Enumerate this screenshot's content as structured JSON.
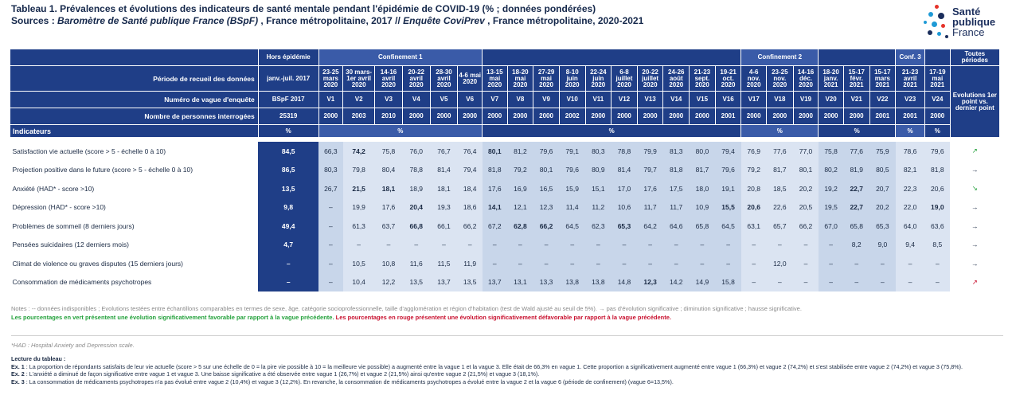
{
  "title": {
    "line1": "Tableau 1. Prévalences et évolutions des indicateurs de santé mentale pendant l'épidémie de COVID-19 (% ; données pondérées)",
    "sources_label": "Sources : ",
    "sources_it1": "Baromètre de Santé publique France (BSpF)",
    "sources_mid": " , France métropolitaine, 2017 // ",
    "sources_it2": "Enquête CoviPrev",
    "sources_end": " , France métropolitaine, 2020-2021"
  },
  "logo": {
    "line1": "Santé",
    "line2": "publique",
    "line3": "France"
  },
  "table": {
    "hors_epidemie": "Hors épidémie",
    "groups": [
      "Confinement 1",
      "Confinement 2",
      "Conf. 3"
    ],
    "toutes_periodes": "Toutes périodes",
    "row_periode_label": "Période de recueil des données",
    "row_vague_label": "Numéro de vague d'enquête",
    "row_nb_label": "Nombre de personnes interrogées",
    "indicateurs_label": "Indicateurs",
    "evolutions_label": "Evolutions 1er point vs. dernier point",
    "periods": [
      "janv.-juil. 2017",
      "23-25 mars 2020",
      "30 mars-1er avril 2020",
      "14-16 avril 2020",
      "20-22 avril 2020",
      "28-30 avril 2020",
      "4-6 mai 2020",
      "13-15 mai 2020",
      "18-20 mai 2020",
      "27-29 mai 2020",
      "8-10 juin 2020",
      "22-24 juin 2020",
      "6-8 juillet 2020",
      "20-22 juillet 2020",
      "24-26 août 2020",
      "21-23 sept. 2020",
      "19-21 oct. 2020",
      "4-6 nov. 2020",
      "23-25 nov. 2020",
      "14-16 déc. 2020",
      "18-20 janv. 2021",
      "15-17 févr. 2021",
      "15-17 mars 2021",
      "21-23 avril 2021",
      "17-19 mai 2021"
    ],
    "vagues": [
      "BSpF 2017",
      "V1",
      "V2",
      "V3",
      "V4",
      "V5",
      "V6",
      "V7",
      "V8",
      "V9",
      "V10",
      "V11",
      "V12",
      "V13",
      "V14",
      "V15",
      "V16",
      "V17",
      "V18",
      "V19",
      "V20",
      "V21",
      "V22",
      "V23",
      "V24"
    ],
    "nb": [
      "25319",
      "2000",
      "2003",
      "2010",
      "2000",
      "2000",
      "2000",
      "2000",
      "2000",
      "2000",
      "2002",
      "2000",
      "2000",
      "2000",
      "2000",
      "2000",
      "2001",
      "2000",
      "2000",
      "2000",
      "2000",
      "2000",
      "2001",
      "2001",
      "2000"
    ],
    "pct": "%",
    "rows": [
      {
        "label": "Satisfaction vie actuelle (score > 5 - échelle 0 à 10)",
        "hors": "84,5",
        "v": [
          "66,3",
          "74,2",
          "75,8",
          "76,0",
          "76,7",
          "76,4",
          "80,1",
          "81,2",
          "79,6",
          "79,1",
          "80,3",
          "78,8",
          "79,9",
          "81,3",
          "80,0",
          "79,4",
          "76,9",
          "77,6",
          "77,0",
          "75,8",
          "77,6",
          "75,9",
          "78,6",
          "79,6"
        ],
        "c": [
          "",
          "g",
          "",
          "",
          "",
          "",
          "g",
          "",
          "",
          "",
          "",
          "",
          "",
          "",
          "",
          "",
          "",
          "",
          "",
          "",
          "",
          "",
          "",
          ""
        ],
        "evo": "↗",
        "evo_kind": "dn"
      },
      {
        "label": "Projection positive dans le future (score > 5 - échelle 0 à 10)",
        "hors": "86,5",
        "v": [
          "80,3",
          "79,8",
          "80,4",
          "78,8",
          "81,4",
          "79,4",
          "81,8",
          "79,2",
          "80,1",
          "79,6",
          "80,9",
          "81,4",
          "79,7",
          "81,8",
          "81,7",
          "79,6",
          "79,2",
          "81,7",
          "80,1",
          "80,2",
          "81,9",
          "80,5",
          "82,1",
          "81,8"
        ],
        "c": [
          "",
          "",
          "",
          "",
          "",
          "",
          "",
          "",
          "",
          "",
          "",
          "",
          "",
          "",
          "",
          "",
          "",
          "",
          "",
          "",
          "",
          "",
          "",
          ""
        ],
        "evo": "→",
        "evo_kind": "eq"
      },
      {
        "label": "Anxiété (HAD* - score >10)",
        "hors": "13,5",
        "v": [
          "26,7",
          "21,5",
          "18,1",
          "18,9",
          "18,1",
          "18,4",
          "17,6",
          "16,9",
          "16,5",
          "15,9",
          "15,1",
          "17,0",
          "17,6",
          "17,5",
          "18,0",
          "19,1",
          "20,8",
          "18,5",
          "20,2",
          "19,2",
          "22,7",
          "20,7",
          "22,3",
          "20,6"
        ],
        "c": [
          "",
          "g",
          "g",
          "",
          "",
          "",
          "",
          "",
          "",
          "",
          "",
          "",
          "",
          "",
          "",
          "",
          "",
          "",
          "",
          "",
          "r",
          "",
          "",
          ""
        ],
        "evo": "↘",
        "evo_kind": "dn"
      },
      {
        "label": "Dépression (HAD* - score >10)",
        "hors": "9,8",
        "v": [
          "–",
          "19,9",
          "17,6",
          "20,4",
          "19,3",
          "18,6",
          "14,1",
          "12,1",
          "12,3",
          "11,4",
          "11,2",
          "10,6",
          "11,7",
          "11,7",
          "10,9",
          "15,5",
          "20,6",
          "22,6",
          "20,5",
          "19,5",
          "22,7",
          "20,2",
          "22,0",
          "19,0"
        ],
        "c": [
          "",
          "",
          "",
          "r",
          "",
          "",
          "g",
          "",
          "",
          "",
          "",
          "",
          "",
          "",
          "",
          "r",
          "r",
          "",
          "",
          "",
          "r",
          "",
          "",
          "g"
        ],
        "evo": "→",
        "evo_kind": "eq"
      },
      {
        "label": "Problèmes de sommeil (8 derniers jours)",
        "hors": "49,4",
        "v": [
          "–",
          "61,3",
          "63,7",
          "66,8",
          "66,1",
          "66,2",
          "67,2",
          "62,8",
          "66,2",
          "64,5",
          "62,3",
          "65,3",
          "64,2",
          "64,6",
          "65,8",
          "64,5",
          "63,1",
          "65,7",
          "66,2",
          "67,0",
          "65,8",
          "65,3",
          "64,0",
          "63,6"
        ],
        "c": [
          "",
          "",
          "",
          "r",
          "",
          "",
          "",
          "g",
          "r",
          "",
          "",
          "r",
          "",
          "",
          "",
          "",
          "",
          "",
          "",
          "",
          "",
          "",
          "",
          ""
        ],
        "evo": "→",
        "evo_kind": "eq"
      },
      {
        "label": "Pensées suicidaires (12 derniers mois)",
        "hors": "4,7",
        "v": [
          "–",
          "–",
          "–",
          "–",
          "–",
          "–",
          "–",
          "–",
          "–",
          "–",
          "–",
          "–",
          "–",
          "–",
          "–",
          "–",
          "–",
          "–",
          "–",
          "–",
          "8,2",
          "9,0",
          "9,4",
          "8,5"
        ],
        "c": [
          "",
          "",
          "",
          "",
          "",
          "",
          "",
          "",
          "",
          "",
          "",
          "",
          "",
          "",
          "",
          "",
          "",
          "",
          "",
          "",
          "",
          "",
          "",
          ""
        ],
        "evo": "→",
        "evo_kind": "eq"
      },
      {
        "label": "Climat de violence ou graves disputes (15 derniers jours)",
        "hors": "–",
        "v": [
          "–",
          "10,5",
          "10,8",
          "11,6",
          "11,5",
          "11,9",
          "–",
          "–",
          "–",
          "–",
          "–",
          "–",
          "–",
          "–",
          "–",
          "–",
          "–",
          "12,0",
          "–",
          "–",
          "–",
          "–",
          "–",
          "–"
        ],
        "c": [
          "",
          "",
          "",
          "",
          "",
          "",
          "",
          "",
          "",
          "",
          "",
          "",
          "",
          "",
          "",
          "",
          "",
          "",
          "",
          "",
          "",
          "",
          "",
          ""
        ],
        "evo": "→",
        "evo_kind": "eq"
      },
      {
        "label": "Consommation de médicaments psychotropes",
        "hors": "–",
        "v": [
          "–",
          "10,4",
          "12,2",
          "13,5",
          "13,7",
          "13,5",
          "13,7",
          "13,1",
          "13,3",
          "13,8",
          "13,8",
          "14,8",
          "12,3",
          "14,2",
          "14,9",
          "15,8",
          "–",
          "–",
          "–",
          "–",
          "–",
          "–",
          "–",
          "–"
        ],
        "c": [
          "",
          "",
          "",
          "",
          "",
          "",
          "",
          "",
          "",
          "",
          "",
          "",
          "g",
          "",
          "",
          "",
          "",
          "",
          "",
          "",
          "",
          "",
          "",
          ""
        ],
        "evo": "↗",
        "evo_kind": "up"
      }
    ]
  },
  "notes": {
    "line1": "Notes : -- données indisponibles ; Evolutions testées entre échantillons comparables en termes de sexe, âge, catégorie socioprofessionnelle, taille d'agglomération et région d'habitation (test de Wald ajusté au seuil de 5%). → pas d'évolution significative ;     diminution significative ;     hausse significative.",
    "green": "Les pourcentages en vert présentent une évolution significativement favorable par rapport à la vague précédente.",
    "red": "Les pourcentages en rouge présentent une évolution significativement défavorable par rapport à la vague précédente.",
    "had": "*HAD : Hospital Anxiety and Depression scale."
  },
  "lecture": {
    "title": "Lecture du tableau :",
    "ex1_label": "Ex. 1",
    "ex1": " : La proportion de répondants satisfaits de leur vie actuelle (score > 5 sur une échelle de 0 = la pire vie possible à 10 = la meilleure vie possible) a augmenté entre la vague 1 et la vague 3. Elle était de 66,3% en vague 1. Cette proportion a significativement augmenté entre vague 1 (66,3%) et vague 2 (74,2%) et s'est stabilisée entre vague 2 (74,2%) et vague 3 (75,8%).",
    "ex2_label": "Ex. 2",
    "ex2": " : L'anxiété a diminué de façon significative entre vague 1 et vague 3. Une baisse significative a été observée entre vague 1 (26,7%) et vague 2 (21,5%) ainsi qu'entre vague 2 (21,5%) et vague 3 (18,1%).",
    "ex3_label": "Ex. 3",
    "ex3": " : La consommation de médicaments psychotropes n'a pas évolué entre vague 2 (10,4%) et vague 3 (12,2%). En revanche, la consommation de médicaments psychotropes a évolué entre la vague 2 et la vague 6 (période de confinement) (vague 6=13,5%)."
  }
}
